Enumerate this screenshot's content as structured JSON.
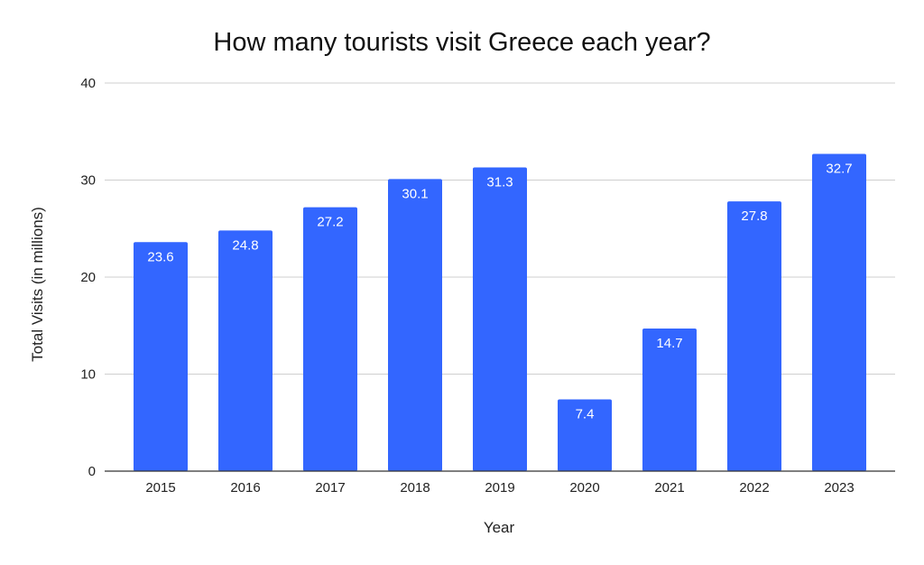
{
  "chart_data": {
    "type": "bar",
    "title": "How many tourists visit Greece each year?",
    "xlabel": "Year",
    "ylabel": "Total Visits (in millions)",
    "categories": [
      "2015",
      "2016",
      "2017",
      "2018",
      "2019",
      "2020",
      "2021",
      "2022",
      "2023"
    ],
    "values": [
      23.6,
      24.8,
      27.2,
      30.1,
      31.3,
      7.4,
      14.7,
      27.8,
      32.7
    ],
    "data_labels": [
      "23.6",
      "24.8",
      "27.2",
      "30.1",
      "31.3",
      "7.4",
      "14.7",
      "27.8",
      "32.7"
    ],
    "ylim": [
      0,
      40
    ],
    "yticks": [
      0,
      10,
      20,
      30,
      40
    ],
    "grid": true,
    "legend": "none",
    "colors": {
      "bar": "#3366ff",
      "grid": "#cfcfcf",
      "axis": "#333333"
    }
  }
}
